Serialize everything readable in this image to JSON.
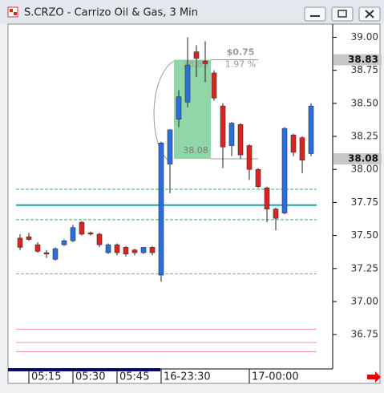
{
  "window": {
    "title": "S.CRZO - Carrizo Oil & Gas, 3 Min"
  },
  "chart_data": {
    "type": "candlestick",
    "open": [
      37.48,
      37.49,
      37.43,
      37.37,
      37.32,
      37.43,
      37.46,
      37.6,
      37.52,
      37.51,
      37.37,
      37.43,
      37.41,
      37.39,
      37.37,
      37.41,
      37.2,
      38.04,
      38.38,
      38.51,
      38.89,
      38.82,
      38.73,
      38.48,
      38.18,
      38.34,
      38.18,
      38.0,
      37.86,
      37.7,
      37.67,
      38.26,
      38.24,
      38.12
    ],
    "high": [
      37.51,
      37.52,
      37.45,
      37.39,
      37.41,
      37.47,
      37.58,
      37.61,
      37.53,
      37.52,
      37.44,
      37.44,
      37.42,
      37.4,
      37.41,
      37.42,
      38.21,
      38.3,
      38.6,
      39.0,
      38.94,
      38.97,
      38.75,
      38.5,
      38.36,
      38.35,
      38.19,
      38.01,
      37.87,
      37.71,
      38.32,
      38.27,
      38.25,
      38.5
    ],
    "low": [
      37.39,
      37.46,
      37.37,
      37.33,
      37.31,
      37.42,
      37.45,
      37.5,
      37.5,
      37.41,
      37.36,
      37.35,
      37.34,
      37.35,
      37.36,
      37.35,
      37.15,
      37.82,
      38.32,
      38.47,
      38.7,
      38.66,
      38.52,
      38.01,
      38.1,
      38.08,
      37.92,
      37.86,
      37.6,
      37.54,
      37.66,
      38.1,
      37.97,
      38.1
    ],
    "close": [
      37.41,
      37.47,
      37.38,
      37.36,
      37.4,
      37.46,
      37.56,
      37.51,
      37.51,
      37.43,
      37.43,
      37.37,
      37.36,
      37.37,
      37.41,
      37.37,
      38.2,
      38.3,
      38.55,
      38.79,
      38.84,
      38.8,
      38.54,
      38.17,
      38.35,
      38.11,
      38.0,
      37.87,
      37.7,
      37.63,
      38.31,
      38.13,
      38.07,
      38.48
    ],
    "up_color": "#2a6fdc",
    "down_color": "#d9241f",
    "xticks": [
      {
        "value": 1,
        "label": "05:15"
      },
      {
        "value": 6,
        "label": "05:30"
      },
      {
        "value": 11,
        "label": "05:45"
      },
      {
        "value": 16,
        "label": "16-23:30"
      },
      {
        "value": 26,
        "label": "17-00:00"
      }
    ],
    "ylim": [
      36.49,
      39.1
    ],
    "yticks": [
      {
        "value": 39,
        "label": "39.00"
      },
      {
        "value": 38.75,
        "label": "38.75"
      },
      {
        "value": 38.5,
        "label": "38.50"
      },
      {
        "value": 38.25,
        "label": "38.25"
      },
      {
        "value": 38,
        "label": "38.00"
      },
      {
        "value": 37.75,
        "label": "37.75"
      },
      {
        "value": 37.5,
        "label": "37.50"
      },
      {
        "value": 37.25,
        "label": "37.25"
      },
      {
        "value": 37,
        "label": "37.00"
      },
      {
        "value": 36.75,
        "label": "36.75"
      }
    ],
    "levels": [
      {
        "value": 37.85,
        "color": "#2fb35a",
        "style": "dashed"
      },
      {
        "value": 37.73,
        "color": "#19a8b0",
        "style": "solid"
      },
      {
        "value": 37.62,
        "color": "#2fb35a",
        "style": "dashed"
      },
      {
        "value": 37.21,
        "color": "#999999",
        "style": "dashed"
      },
      {
        "value": 36.79,
        "color": "#f08ac8",
        "style": "solid"
      },
      {
        "value": 36.69,
        "color": "#f08ac8",
        "style": "solid"
      },
      {
        "value": 36.62,
        "color": "#f08ac8",
        "style": "solid"
      }
    ],
    "measure": {
      "from": 38.08,
      "to": 38.83,
      "from_label": "38.08",
      "to_label": "38.83",
      "change_label": "$0.75",
      "pct_label": "1.97 %"
    },
    "price_tags": [
      {
        "value": 38.83,
        "label": "38.83"
      },
      {
        "value": 38.08,
        "label": "38.08"
      }
    ]
  }
}
